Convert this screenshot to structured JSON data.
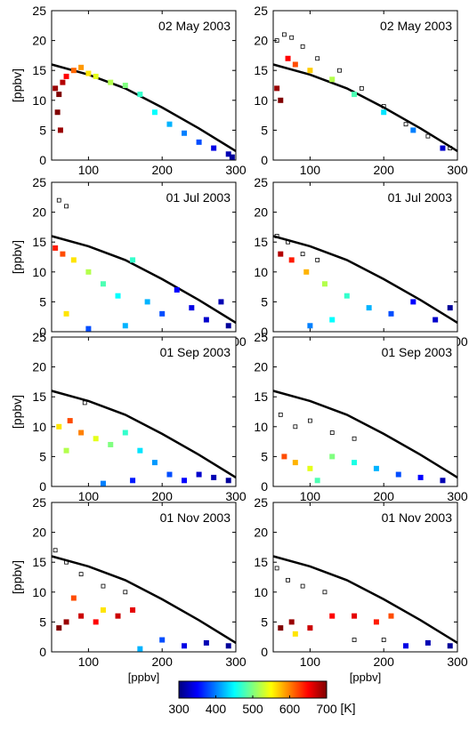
{
  "colorbar": {
    "ticks": [
      300,
      400,
      500,
      600,
      700
    ],
    "unit_label": "[K]",
    "range": [
      300,
      700
    ],
    "colormap": "jet"
  },
  "chart_data": [
    {
      "type": "scatter",
      "row": 0,
      "col": 0,
      "annotation": "02 May 2003",
      "ylabel": "[ppbv]",
      "xlabel": "",
      "xlim": [
        50,
        300
      ],
      "ylim": [
        0,
        25
      ],
      "xticks": [
        100,
        200,
        300
      ],
      "yticks": [
        0,
        5,
        10,
        15,
        20,
        25
      ],
      "reference_curve": {
        "x": [
          50,
          100,
          150,
          200,
          250,
          300
        ],
        "y": [
          16,
          14.3,
          12,
          8.8,
          5.3,
          1.5
        ]
      },
      "series": [
        {
          "points": [
            [
              55,
              12,
              690
            ],
            [
              60,
              11,
              700
            ],
            [
              65,
              13,
              680
            ],
            [
              58,
              8,
              700
            ],
            [
              62,
              5,
              690
            ],
            [
              70,
              14,
              650
            ],
            [
              80,
              15,
              610
            ],
            [
              90,
              15.5,
              590
            ],
            [
              100,
              14.5,
              560
            ],
            [
              110,
              14,
              540
            ],
            [
              130,
              13,
              520
            ],
            [
              150,
              12.5,
              500
            ],
            [
              170,
              11,
              470
            ],
            [
              190,
              8,
              450
            ],
            [
              210,
              6,
              420
            ],
            [
              230,
              4.5,
              400
            ],
            [
              250,
              3,
              380
            ],
            [
              270,
              2,
              340
            ],
            [
              290,
              1,
              320
            ],
            [
              295,
              0.5,
              310
            ]
          ]
        }
      ]
    },
    {
      "type": "scatter",
      "row": 0,
      "col": 1,
      "annotation": "02 May 2003",
      "ylabel": "",
      "xlabel": "",
      "xlim": [
        50,
        300
      ],
      "ylim": [
        0,
        25
      ],
      "xticks": [
        100,
        200,
        300
      ],
      "yticks": [
        0,
        5,
        10,
        15,
        20,
        25
      ],
      "reference_curve": {
        "x": [
          50,
          100,
          150,
          200,
          250,
          300
        ],
        "y": [
          16,
          14.3,
          12,
          8.8,
          5.3,
          1.5
        ]
      },
      "series": [
        {
          "points": [
            [
              55,
              20,
              null
            ],
            [
              65,
              21,
              null
            ],
            [
              75,
              20.5,
              null
            ],
            [
              90,
              19,
              null
            ],
            [
              110,
              17,
              null
            ],
            [
              140,
              15,
              null
            ],
            [
              170,
              12,
              null
            ],
            [
              200,
              9,
              null
            ],
            [
              230,
              6,
              null
            ],
            [
              260,
              4,
              null
            ],
            [
              290,
              2,
              null
            ],
            [
              55,
              12,
              690
            ],
            [
              60,
              10,
              700
            ],
            [
              70,
              17,
              650
            ],
            [
              80,
              16,
              620
            ],
            [
              100,
              15,
              570
            ],
            [
              130,
              13.5,
              520
            ],
            [
              160,
              11,
              480
            ],
            [
              200,
              8,
              440
            ],
            [
              240,
              5,
              400
            ],
            [
              280,
              2,
              330
            ]
          ]
        }
      ]
    },
    {
      "type": "scatter",
      "row": 1,
      "col": 0,
      "annotation": "01 Jul 2003",
      "ylabel": "[ppbv]",
      "xlabel": "",
      "xlim": [
        50,
        300
      ],
      "ylim": [
        0,
        25
      ],
      "xticks": [
        100,
        200,
        300
      ],
      "yticks": [
        0,
        5,
        10,
        15,
        20,
        25
      ],
      "reference_curve": {
        "x": [
          50,
          100,
          150,
          200,
          250,
          300
        ],
        "y": [
          16,
          14.3,
          12,
          8.8,
          5.3,
          1.5
        ]
      },
      "series": [
        {
          "points": [
            [
              60,
              22,
              null
            ],
            [
              70,
              21,
              null
            ],
            [
              55,
              14,
              640
            ],
            [
              65,
              13,
              620
            ],
            [
              80,
              12,
              560
            ],
            [
              100,
              10,
              520
            ],
            [
              120,
              8,
              480
            ],
            [
              140,
              6,
              450
            ],
            [
              160,
              12,
              470
            ],
            [
              180,
              5,
              420
            ],
            [
              200,
              3,
              380
            ],
            [
              220,
              7,
              350
            ],
            [
              240,
              4,
              340
            ],
            [
              260,
              2,
              330
            ],
            [
              280,
              5,
              320
            ],
            [
              290,
              1,
              310
            ],
            [
              100,
              0.5,
              380
            ],
            [
              150,
              1,
              420
            ],
            [
              70,
              3,
              560
            ]
          ]
        }
      ]
    },
    {
      "type": "scatter",
      "row": 1,
      "col": 1,
      "annotation": "01 Jul 2003",
      "ylabel": "",
      "xlabel": "",
      "xlim": [
        50,
        300
      ],
      "ylim": [
        0,
        25
      ],
      "xticks": [
        100,
        200,
        300
      ],
      "yticks": [
        0,
        5,
        10,
        15,
        20,
        25
      ],
      "reference_curve": {
        "x": [
          50,
          100,
          150,
          200,
          250,
          300
        ],
        "y": [
          16,
          14.3,
          12,
          8.8,
          5.3,
          1.5
        ]
      },
      "series": [
        {
          "points": [
            [
              55,
              16,
              null
            ],
            [
              70,
              15,
              null
            ],
            [
              90,
              13,
              null
            ],
            [
              110,
              12,
              null
            ],
            [
              60,
              13,
              680
            ],
            [
              75,
              12,
              640
            ],
            [
              95,
              10,
              580
            ],
            [
              120,
              8,
              520
            ],
            [
              150,
              6,
              470
            ],
            [
              180,
              4,
              420
            ],
            [
              210,
              3,
              380
            ],
            [
              240,
              5,
              350
            ],
            [
              270,
              2,
              330
            ],
            [
              290,
              4,
              310
            ],
            [
              100,
              1,
              400
            ],
            [
              130,
              2,
              450
            ]
          ]
        }
      ]
    },
    {
      "type": "scatter",
      "row": 2,
      "col": 0,
      "annotation": "01 Sep 2003",
      "ylabel": "[ppbv]",
      "xlabel": "",
      "xlim": [
        50,
        300
      ],
      "ylim": [
        0,
        25
      ],
      "xticks": [
        100,
        200,
        300
      ],
      "yticks": [
        0,
        5,
        10,
        15,
        20,
        25
      ],
      "reference_curve": {
        "x": [
          50,
          100,
          150,
          200,
          250,
          300
        ],
        "y": [
          16,
          14.3,
          12,
          8.8,
          5.3,
          1.5
        ]
      },
      "series": [
        {
          "points": [
            [
              95,
              14,
              null
            ],
            [
              60,
              10,
              560
            ],
            [
              75,
              11,
              620
            ],
            [
              90,
              9,
              600
            ],
            [
              110,
              8,
              540
            ],
            [
              130,
              7,
              500
            ],
            [
              150,
              9,
              470
            ],
            [
              170,
              6,
              440
            ],
            [
              190,
              4,
              410
            ],
            [
              210,
              2,
              380
            ],
            [
              230,
              1,
              350
            ],
            [
              250,
              2,
              330
            ],
            [
              270,
              1.5,
              320
            ],
            [
              290,
              1,
              310
            ],
            [
              120,
              0.5,
              400
            ],
            [
              160,
              1,
              360
            ],
            [
              70,
              6,
              520
            ]
          ]
        }
      ]
    },
    {
      "type": "scatter",
      "row": 2,
      "col": 1,
      "annotation": "01 Sep 2003",
      "ylabel": "",
      "xlabel": "",
      "xlim": [
        50,
        300
      ],
      "ylim": [
        0,
        25
      ],
      "xticks": [
        100,
        200,
        300
      ],
      "yticks": [
        0,
        5,
        10,
        15,
        20,
        25
      ],
      "reference_curve": {
        "x": [
          50,
          100,
          150,
          200,
          250,
          300
        ],
        "y": [
          16,
          14.3,
          12,
          8.8,
          5.3,
          1.5
        ]
      },
      "series": [
        {
          "points": [
            [
              60,
              12,
              null
            ],
            [
              80,
              10,
              null
            ],
            [
              100,
              11,
              null
            ],
            [
              130,
              9,
              null
            ],
            [
              160,
              8,
              null
            ],
            [
              65,
              5,
              620
            ],
            [
              80,
              4,
              580
            ],
            [
              100,
              3,
              540
            ],
            [
              130,
              5,
              500
            ],
            [
              160,
              4,
              460
            ],
            [
              190,
              3,
              420
            ],
            [
              220,
              2,
              380
            ],
            [
              250,
              1.5,
              350
            ],
            [
              280,
              1,
              320
            ],
            [
              110,
              1,
              480
            ]
          ]
        }
      ]
    },
    {
      "type": "scatter",
      "row": 3,
      "col": 0,
      "annotation": "01 Nov 2003",
      "ylabel": "[ppbv]",
      "xlabel": "[ppbv]",
      "xlim": [
        50,
        300
      ],
      "ylim": [
        0,
        25
      ],
      "xticks": [
        100,
        200,
        300
      ],
      "yticks": [
        0,
        5,
        10,
        15,
        20,
        25
      ],
      "reference_curve": {
        "x": [
          50,
          100,
          150,
          200,
          250,
          300
        ],
        "y": [
          16,
          14.3,
          12,
          8.8,
          5.3,
          1.5
        ]
      },
      "series": [
        {
          "points": [
            [
              55,
              17,
              null
            ],
            [
              70,
              15,
              null
            ],
            [
              90,
              13,
              null
            ],
            [
              120,
              11,
              null
            ],
            [
              150,
              10,
              null
            ],
            [
              60,
              4,
              700
            ],
            [
              70,
              5,
              690
            ],
            [
              90,
              6,
              670
            ],
            [
              110,
              5,
              650
            ],
            [
              140,
              6,
              670
            ],
            [
              160,
              7,
              660
            ],
            [
              80,
              9,
              620
            ],
            [
              120,
              7,
              560
            ],
            [
              200,
              2,
              380
            ],
            [
              230,
              1,
              340
            ],
            [
              260,
              1.5,
              320
            ],
            [
              290,
              1,
              310
            ],
            [
              170,
              0.5,
              420
            ]
          ]
        }
      ]
    },
    {
      "type": "scatter",
      "row": 3,
      "col": 1,
      "annotation": "01 Nov 2003",
      "ylabel": "",
      "xlabel": "[ppbv]",
      "xlim": [
        50,
        300
      ],
      "ylim": [
        0,
        25
      ],
      "xticks": [
        100,
        200,
        300
      ],
      "yticks": [
        0,
        5,
        10,
        15,
        20,
        25
      ],
      "reference_curve": {
        "x": [
          50,
          100,
          150,
          200,
          250,
          300
        ],
        "y": [
          16,
          14.3,
          12,
          8.8,
          5.3,
          1.5
        ]
      },
      "series": [
        {
          "points": [
            [
              55,
              14,
              null
            ],
            [
              70,
              12,
              null
            ],
            [
              90,
              11,
              null
            ],
            [
              120,
              10,
              null
            ],
            [
              160,
              2,
              null
            ],
            [
              200,
              2,
              null
            ],
            [
              60,
              4,
              700
            ],
            [
              75,
              5,
              690
            ],
            [
              100,
              4,
              670
            ],
            [
              130,
              6,
              650
            ],
            [
              160,
              6,
              660
            ],
            [
              190,
              5,
              640
            ],
            [
              210,
              6,
              620
            ],
            [
              80,
              3,
              560
            ],
            [
              230,
              1,
              340
            ],
            [
              260,
              1.5,
              320
            ],
            [
              290,
              1,
              310
            ]
          ]
        }
      ]
    }
  ]
}
